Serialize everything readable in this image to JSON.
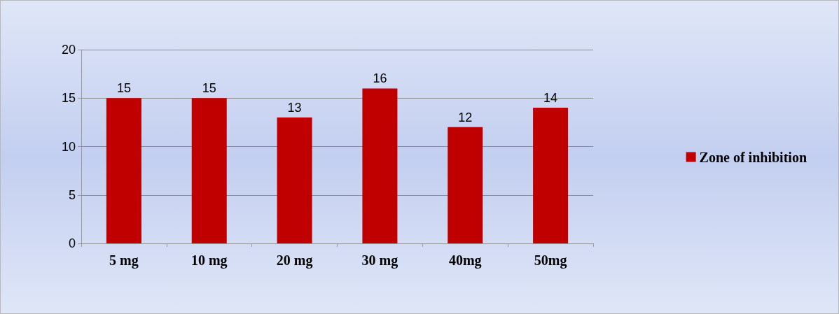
{
  "chart_data": {
    "type": "bar",
    "categories": [
      "5 mg",
      "10 mg",
      "20 mg",
      "30 mg",
      "40mg",
      "50mg"
    ],
    "series": [
      {
        "name": "Zone of inhibition",
        "color": "#c00000",
        "values": [
          15,
          15,
          13,
          16,
          12,
          14
        ]
      }
    ],
    "ylim": [
      0,
      20
    ],
    "yticks": [
      0,
      5,
      10,
      15,
      20
    ],
    "grid": "y",
    "legend": "right",
    "data_labels": true
  }
}
